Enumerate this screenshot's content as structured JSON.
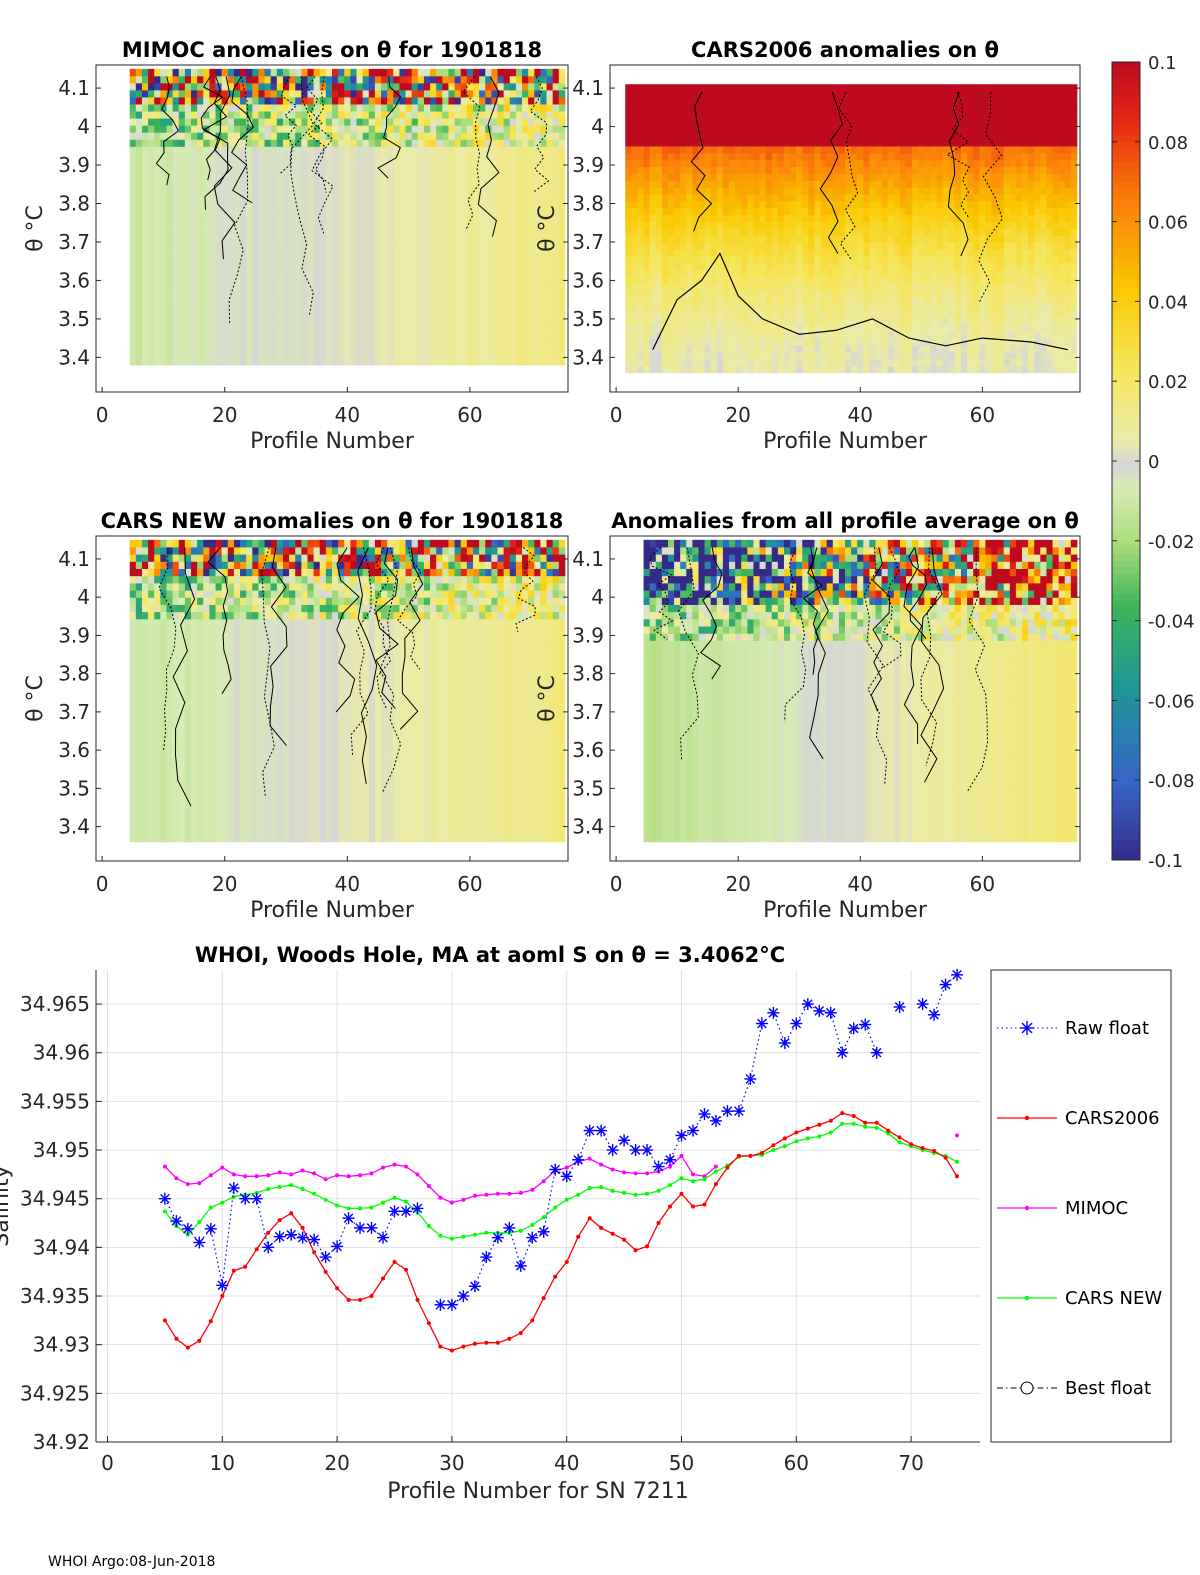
{
  "footer": "WHOI Argo:08-Jun-2018",
  "colors": {
    "raw_float": "#0000ff",
    "cars2006": "#ff0000",
    "mimoc": "#ff00ff",
    "cars_new": "#00ff00",
    "best_float": "#000000"
  },
  "colorbar": {
    "ticks": [
      "0.1",
      "0.08",
      "0.06",
      "0.04",
      "0.02",
      "0",
      "-0.02",
      "-0.04",
      "-0.06",
      "-0.08",
      "-0.1"
    ],
    "range": [
      -0.1,
      0.1
    ]
  },
  "chart_data": [
    {
      "type": "heatmap",
      "title": "MIMOC anomalies on θ  for 1901818",
      "xlabel": "Profile Number",
      "ylabel": "θ °C",
      "xticks": [
        "0",
        "20",
        "40",
        "60"
      ],
      "yticks": [
        "4.1",
        "4",
        "3.9",
        "3.8",
        "3.7",
        "3.6",
        "3.5",
        "3.4"
      ],
      "xlim": [
        -1,
        76
      ],
      "ylim": [
        3.31,
        4.16
      ],
      "profiles": [
        5,
        75
      ],
      "theta_min": 3.38,
      "theta_max": 4.15,
      "pattern": "mixed"
    },
    {
      "type": "heatmap",
      "title": "CARS2006 anomalies on θ",
      "xlabel": "Profile Number",
      "ylabel": "θ °C",
      "xticks": [
        "0",
        "20",
        "40",
        "60"
      ],
      "yticks": [
        "4.1",
        "4",
        "3.9",
        "3.8",
        "3.7",
        "3.6",
        "3.5",
        "3.4"
      ],
      "xlim": [
        -1,
        76
      ],
      "ylim": [
        3.31,
        4.16
      ],
      "profiles": [
        2,
        75
      ],
      "theta_min": 3.36,
      "theta_max": 4.11,
      "pattern": "warm"
    },
    {
      "type": "heatmap",
      "title": "CARS NEW anomalies on θ for 1901818",
      "xlabel": "Profile Number",
      "ylabel": "θ °C",
      "xticks": [
        "0",
        "20",
        "40",
        "60"
      ],
      "yticks": [
        "4.1",
        "4",
        "3.9",
        "3.8",
        "3.7",
        "3.6",
        "3.5",
        "3.4"
      ],
      "xlim": [
        -1,
        76
      ],
      "ylim": [
        3.31,
        4.16
      ],
      "profiles": [
        5,
        75
      ],
      "theta_min": 3.36,
      "theta_max": 4.15,
      "pattern": "mixed"
    },
    {
      "type": "heatmap",
      "title": "Anomalies from all profile average on θ",
      "xlabel": "Profile Number",
      "ylabel": "θ °C",
      "xticks": [
        "0",
        "20",
        "40",
        "60"
      ],
      "yticks": [
        "4.1",
        "4",
        "3.9",
        "3.8",
        "3.7",
        "3.6",
        "3.5",
        "3.4"
      ],
      "xlim": [
        -1,
        76
      ],
      "ylim": [
        3.31,
        4.16
      ],
      "profiles": [
        5,
        75
      ],
      "theta_min": 3.36,
      "theta_max": 4.15,
      "pattern": "average"
    },
    {
      "type": "line",
      "title": "WHOI, Woods Hole, MA at aoml S on θ = 3.4062°C",
      "xlabel": "Profile Number for SN 7211",
      "ylabel": "Salinity",
      "xlim": [
        -1,
        76
      ],
      "ylim": [
        34.92,
        34.9685
      ],
      "xticks": [
        0,
        10,
        20,
        30,
        40,
        50,
        60,
        70
      ],
      "yticks": [
        34.92,
        34.925,
        34.93,
        34.935,
        34.94,
        34.945,
        34.95,
        34.955,
        34.96,
        34.965
      ],
      "legend_position": "right",
      "series": [
        {
          "name": "Raw float",
          "style": "dotted-star",
          "x": [
            5,
            6,
            7,
            8,
            9,
            10,
            11,
            12,
            13,
            14,
            15,
            16,
            17,
            18,
            19,
            20,
            21,
            22,
            23,
            24,
            25,
            26,
            27,
            29,
            30,
            31,
            32,
            33,
            34,
            35,
            36,
            37,
            38,
            39,
            40,
            41,
            42,
            43,
            44,
            45,
            46,
            47,
            48,
            49,
            50,
            51,
            52,
            53,
            54,
            55,
            56,
            57,
            58,
            59,
            60,
            61,
            62,
            63,
            64,
            65,
            66,
            67,
            69,
            71,
            72,
            73,
            74
          ],
          "values": [
            34.945,
            34.9427,
            34.9419,
            34.9405,
            34.9419,
            34.9361,
            34.9461,
            34.945,
            34.945,
            34.94,
            34.9411,
            34.9413,
            34.941,
            34.9408,
            34.939,
            34.9401,
            34.943,
            34.942,
            34.942,
            34.941,
            34.9437,
            34.9437,
            34.944,
            34.9341,
            34.9341,
            34.935,
            34.936,
            34.939,
            34.941,
            34.942,
            34.9381,
            34.941,
            34.9416,
            34.948,
            34.9473,
            34.949,
            34.952,
            34.952,
            34.95,
            34.951,
            34.95,
            34.95,
            34.9483,
            34.949,
            34.9515,
            34.952,
            34.9537,
            34.953,
            34.954,
            34.954,
            34.9573,
            34.963,
            34.9641,
            34.961,
            34.963,
            34.965,
            34.9643,
            34.9641,
            34.96,
            34.9625,
            34.9629,
            34.96,
            34.9647,
            34.965,
            34.9639,
            34.967,
            34.968
          ]
        },
        {
          "name": "CARS2006",
          "style": "line-dot",
          "x": [
            5,
            6,
            7,
            8,
            9,
            10,
            11,
            12,
            13,
            14,
            15,
            16,
            17,
            18,
            19,
            20,
            21,
            22,
            23,
            24,
            25,
            26,
            27,
            28,
            29,
            30,
            31,
            32,
            33,
            34,
            35,
            36,
            37,
            38,
            39,
            40,
            41,
            42,
            43,
            44,
            45,
            46,
            47,
            48,
            49,
            50,
            51,
            52,
            53,
            54,
            55,
            56,
            57,
            58,
            59,
            60,
            61,
            62,
            63,
            64,
            65,
            66,
            67,
            68,
            69,
            70,
            71,
            72,
            73,
            74
          ],
          "values": [
            34.9325,
            34.9306,
            34.9297,
            34.9304,
            34.9324,
            34.935,
            34.9376,
            34.938,
            34.9398,
            34.9415,
            34.9428,
            34.9435,
            34.942,
            34.9395,
            34.9375,
            34.9358,
            34.9346,
            34.9346,
            34.935,
            34.9368,
            34.9385,
            34.9377,
            34.9346,
            34.9322,
            34.9298,
            34.9294,
            34.9298,
            34.9301,
            34.9302,
            34.9302,
            34.9306,
            34.9312,
            34.9325,
            34.9348,
            34.937,
            34.9385,
            34.9411,
            34.943,
            34.942,
            34.9414,
            34.9408,
            34.9397,
            34.9401,
            34.9425,
            34.9442,
            34.9455,
            34.9442,
            34.9444,
            34.9465,
            34.9482,
            34.9494,
            34.9494,
            34.9497,
            34.9505,
            34.9512,
            34.9518,
            34.9522,
            34.9526,
            34.953,
            34.9538,
            34.9535,
            34.9528,
            34.9528,
            34.952,
            34.9513,
            34.9506,
            34.9502,
            34.9499,
            34.9492,
            34.9473
          ]
        },
        {
          "name": "MIMOC",
          "style": "line-dot",
          "x": [
            5,
            6,
            7,
            8,
            9,
            10,
            11,
            12,
            13,
            14,
            15,
            16,
            17,
            18,
            19,
            20,
            21,
            22,
            23,
            24,
            25,
            26,
            27,
            28,
            29,
            30,
            31,
            32,
            33,
            34,
            35,
            36,
            37,
            38,
            39,
            40,
            41,
            42,
            43,
            44,
            45,
            46,
            47,
            48,
            49,
            50,
            51,
            52,
            53,
            74
          ],
          "values": [
            34.9483,
            34.9471,
            34.9465,
            34.9466,
            34.9474,
            34.9482,
            34.9475,
            34.9473,
            34.9473,
            34.9474,
            34.9477,
            34.9475,
            34.9479,
            34.9476,
            34.947,
            34.9474,
            34.9473,
            34.9474,
            34.9476,
            34.9482,
            34.9485,
            34.9483,
            34.9475,
            34.9463,
            34.9451,
            34.9446,
            34.9449,
            34.9453,
            34.9454,
            34.9455,
            34.9455,
            34.9456,
            34.9459,
            34.9468,
            34.9479,
            34.9482,
            34.9488,
            34.9491,
            34.9485,
            34.948,
            34.9477,
            34.9476,
            34.9476,
            34.9478,
            34.9483,
            34.9494,
            34.9475,
            34.9473,
            34.9483,
            34.9515
          ]
        },
        {
          "name": "CARS NEW",
          "style": "line-dot",
          "x": [
            5,
            6,
            7,
            8,
            9,
            10,
            11,
            12,
            13,
            14,
            15,
            16,
            17,
            18,
            19,
            20,
            21,
            22,
            23,
            24,
            25,
            26,
            27,
            28,
            29,
            30,
            31,
            32,
            33,
            34,
            35,
            36,
            37,
            38,
            39,
            40,
            41,
            42,
            43,
            44,
            45,
            46,
            47,
            48,
            49,
            50,
            51,
            52,
            53,
            54,
            55,
            56,
            57,
            58,
            59,
            60,
            61,
            62,
            63,
            64,
            65,
            66,
            67,
            68,
            69,
            70,
            71,
            72,
            73,
            74
          ],
          "values": [
            34.9437,
            34.9422,
            34.9413,
            34.9426,
            34.9441,
            34.9446,
            34.9452,
            34.9454,
            34.9456,
            34.946,
            34.9462,
            34.9464,
            34.946,
            34.9455,
            34.9449,
            34.9443,
            34.944,
            34.944,
            34.9441,
            34.9446,
            34.9451,
            34.9447,
            34.9436,
            34.9422,
            34.9412,
            34.9409,
            34.9411,
            34.9413,
            34.9415,
            34.9415,
            34.9415,
            34.9417,
            34.9423,
            34.9431,
            34.9441,
            34.9449,
            34.9454,
            34.9461,
            34.9462,
            34.9458,
            34.9456,
            34.9454,
            34.9455,
            34.9458,
            34.9464,
            34.9471,
            34.9468,
            34.947,
            34.9478,
            34.9484,
            34.9493,
            34.9494,
            34.9495,
            34.95,
            34.9504,
            34.9509,
            34.9512,
            34.9514,
            34.9518,
            34.9527,
            34.9527,
            34.9524,
            34.9523,
            34.9517,
            34.9508,
            34.9504,
            34.95,
            34.9497,
            34.9494,
            34.9488
          ]
        },
        {
          "name": "Best float",
          "style": "dashdot-circle",
          "x": [],
          "values": []
        }
      ]
    }
  ]
}
